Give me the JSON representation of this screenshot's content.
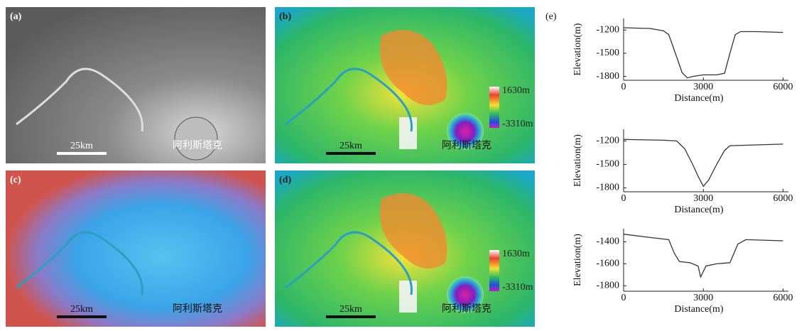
{
  "panels": [
    {
      "label": "(a)",
      "scale": "25km",
      "crater": "阿利斯塔克"
    },
    {
      "label": "(b)",
      "scale": "25km",
      "crater": "阿利斯塔克",
      "colorbar": [
        "1630m",
        "-3310m"
      ]
    },
    {
      "label": "(c)",
      "scale": "25km",
      "crater": "阿利斯塔克"
    },
    {
      "label": "(d)",
      "scale": "25km",
      "crater": "阿利斯塔克",
      "colorbar": [
        "1630m",
        "-3310m"
      ]
    }
  ],
  "profile_label": "(e)",
  "chart_data": [
    {
      "type": "line",
      "x_label": "Distance(m)",
      "y_label": "Elevation(m)",
      "color": "#333333",
      "x": [
        0,
        500,
        1000,
        1500,
        1700,
        2000,
        2200,
        2400,
        2600,
        3000,
        3500,
        3800,
        4000,
        4200,
        4400,
        5000,
        6000
      ],
      "values": [
        -1170,
        -1175,
        -1180,
        -1210,
        -1260,
        -1550,
        -1750,
        -1820,
        -1800,
        -1780,
        -1780,
        -1760,
        -1500,
        -1260,
        -1220,
        -1220,
        -1230
      ],
      "xlim": [
        0,
        6200
      ],
      "ylim": [
        -1850,
        -1050
      ],
      "xticks": [
        0,
        3000,
        6000
      ],
      "yticks": [
        -1200,
        -1500,
        -1800
      ]
    },
    {
      "type": "line",
      "x_label": "Distance(m)",
      "y_label": "Elevation(m)",
      "color": "#333333",
      "x": [
        0,
        1500,
        2000,
        2300,
        2600,
        2800,
        3000,
        3200,
        3500,
        3800,
        4000,
        5000,
        6000
      ],
      "values": [
        -1180,
        -1190,
        -1200,
        -1300,
        -1500,
        -1650,
        -1780,
        -1700,
        -1500,
        -1320,
        -1260,
        -1250,
        -1240
      ],
      "xlim": [
        0,
        6200
      ],
      "ylim": [
        -1850,
        -1050
      ],
      "xticks": [
        0,
        3000,
        6000
      ],
      "yticks": [
        -1200,
        -1500,
        -1800
      ]
    },
    {
      "type": "line",
      "x_label": "Distance(m)",
      "y_label": "Elevation(m)",
      "color": "#333333",
      "x": [
        0,
        1000,
        1700,
        1900,
        2100,
        2500,
        2800,
        2900,
        3100,
        3500,
        4000,
        4300,
        4600,
        6000
      ],
      "values": [
        -1330,
        -1360,
        -1380,
        -1500,
        -1580,
        -1590,
        -1620,
        -1720,
        -1620,
        -1600,
        -1590,
        -1420,
        -1380,
        -1390
      ],
      "xlim": [
        0,
        6200
      ],
      "ylim": [
        -1850,
        -1280
      ],
      "xticks": [
        0,
        3000,
        6000
      ],
      "yticks": [
        -1400,
        -1600,
        -1800
      ]
    }
  ]
}
